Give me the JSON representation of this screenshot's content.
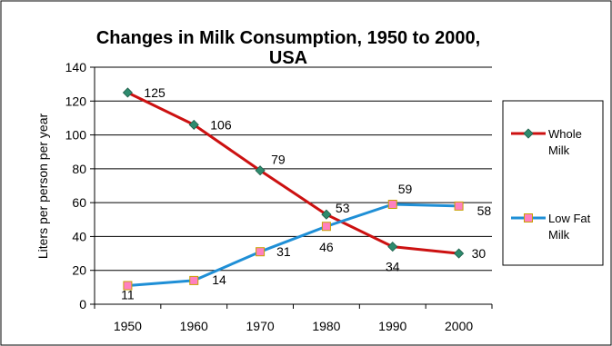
{
  "chart_data": {
    "type": "line",
    "title": "Changes in Milk Consumption, 1950 to 2000, USA",
    "title_lines": [
      "Changes in Milk Consumption, 1950 to 2000,",
      "USA"
    ],
    "ylabel": "Liters per person per year",
    "xlabel": "",
    "categories": [
      "1950",
      "1960",
      "1970",
      "1980",
      "1990",
      "2000"
    ],
    "ylim": [
      0,
      140
    ],
    "yticks": [
      "0",
      "20",
      "40",
      "60",
      "80",
      "100",
      "120",
      "140"
    ],
    "grid": "horizontal",
    "legend_position": "right",
    "series": [
      {
        "name": "Whole Milk",
        "name_lines": [
          "Whole",
          "Milk"
        ],
        "values": [
          125,
          106,
          79,
          53,
          34,
          30
        ],
        "labels": [
          "125",
          "106",
          "79",
          "53",
          "34",
          "30"
        ],
        "line_color": "#cc1111",
        "marker": "diamond",
        "marker_color": "#2e8b6e"
      },
      {
        "name": "Low Fat Milk",
        "name_lines": [
          "Low Fat",
          "Milk"
        ],
        "values": [
          11,
          14,
          31,
          46,
          59,
          58
        ],
        "labels": [
          "11",
          "14",
          "31",
          "46",
          "59",
          "58"
        ],
        "line_color": "#1f8fd6",
        "marker": "square",
        "marker_color": "#ff80c0"
      }
    ]
  }
}
